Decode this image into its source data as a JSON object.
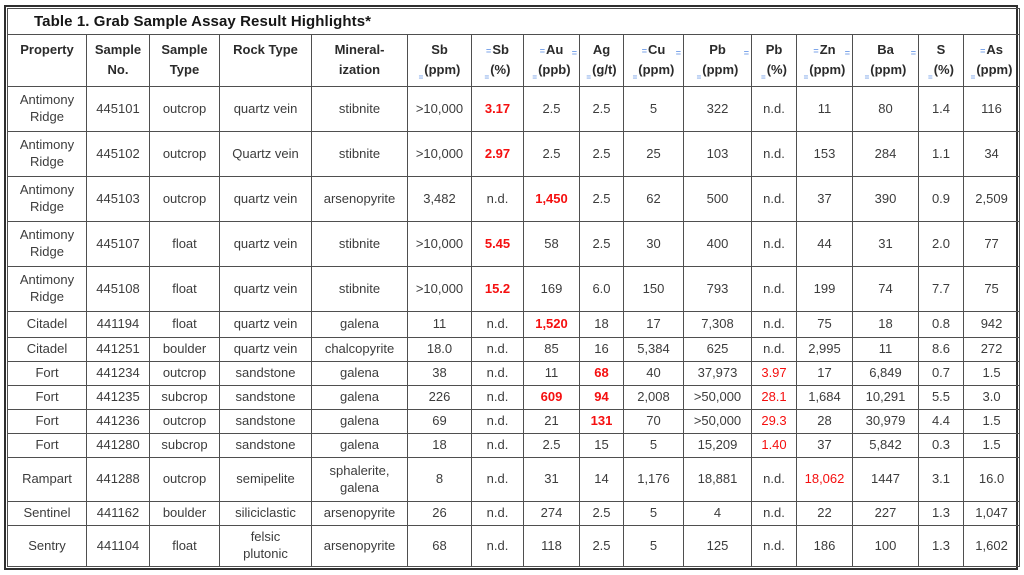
{
  "title": "Table 1. Grab Sample Assay Result Highlights*",
  "accent_colors": {
    "highlight_red": "#f50f0f",
    "proofing_mark_blue": "#7ea6ea",
    "grid_line": "#4f4f4f",
    "text": "#3c3c3c"
  },
  "columns": [
    {
      "key": "property",
      "line1": "Property",
      "line2": "",
      "marks": {
        "pre": false,
        "post": false,
        "sub": false
      }
    },
    {
      "key": "sample-no",
      "line1": "Sample",
      "line2": "No.",
      "marks": {
        "pre": false,
        "post": false,
        "sub": false
      }
    },
    {
      "key": "sample-type",
      "line1": "Sample",
      "line2": "Type",
      "marks": {
        "pre": false,
        "post": false,
        "sub": false
      }
    },
    {
      "key": "rock-type",
      "line1": "Rock Type",
      "line2": "",
      "marks": {
        "pre": false,
        "post": false,
        "sub": false
      }
    },
    {
      "key": "mineralization",
      "line1": "Mineral-",
      "line2": "ization",
      "marks": {
        "pre": false,
        "post": false,
        "sub": false
      }
    },
    {
      "key": "sb-ppm",
      "line1": "Sb",
      "line2": "(ppm)",
      "marks": {
        "pre": false,
        "post": false,
        "sub": true
      }
    },
    {
      "key": "sb-pct",
      "line1": "Sb",
      "line2": "(%)",
      "marks": {
        "pre": true,
        "post": false,
        "sub": true
      }
    },
    {
      "key": "au-ppb",
      "line1": "Au",
      "line2": "(ppb)",
      "marks": {
        "pre": true,
        "post": true,
        "sub": true
      }
    },
    {
      "key": "ag-gt",
      "line1": "Ag",
      "line2": "(g/t)",
      "marks": {
        "pre": false,
        "post": false,
        "sub": true
      }
    },
    {
      "key": "cu-ppm",
      "line1": "Cu",
      "line2": "(ppm)",
      "marks": {
        "pre": true,
        "post": true,
        "sub": true
      }
    },
    {
      "key": "pb-ppm",
      "line1": "Pb",
      "line2": "(ppm)",
      "marks": {
        "pre": false,
        "post": true,
        "sub": true
      }
    },
    {
      "key": "pb-pct",
      "line1": "Pb",
      "line2": "(%)",
      "marks": {
        "pre": false,
        "post": false,
        "sub": true
      }
    },
    {
      "key": "zn-ppm",
      "line1": "Zn",
      "line2": "(ppm)",
      "marks": {
        "pre": true,
        "post": true,
        "sub": true
      }
    },
    {
      "key": "ba-ppm",
      "line1": "Ba",
      "line2": "(ppm)",
      "marks": {
        "pre": false,
        "post": true,
        "sub": true
      }
    },
    {
      "key": "s-pct",
      "line1": "S",
      "line2": "(%)",
      "marks": {
        "pre": false,
        "post": false,
        "sub": true
      }
    },
    {
      "key": "as-ppm",
      "line1": "As",
      "line2": "(ppm)",
      "marks": {
        "pre": true,
        "post": false,
        "sub": true
      }
    }
  ],
  "rows": [
    {
      "cells": [
        {
          "text": "Antimony\nRidge"
        },
        {
          "text": "445101"
        },
        {
          "text": "outcrop"
        },
        {
          "text": "quartz vein"
        },
        {
          "text": "stibnite"
        },
        {
          "text": ">10,000"
        },
        {
          "text": "3.17",
          "style": "red-bold"
        },
        {
          "text": "2.5"
        },
        {
          "text": "2.5"
        },
        {
          "text": "5"
        },
        {
          "text": "322"
        },
        {
          "text": "n.d."
        },
        {
          "text": "11"
        },
        {
          "text": "80"
        },
        {
          "text": "1.4"
        },
        {
          "text": "116"
        }
      ]
    },
    {
      "cells": [
        {
          "text": "Antimony\nRidge"
        },
        {
          "text": "445102"
        },
        {
          "text": "outcrop"
        },
        {
          "text": "Quartz vein"
        },
        {
          "text": "stibnite"
        },
        {
          "text": ">10,000"
        },
        {
          "text": "2.97",
          "style": "red-bold"
        },
        {
          "text": "2.5"
        },
        {
          "text": "2.5"
        },
        {
          "text": "25"
        },
        {
          "text": "103"
        },
        {
          "text": "n.d."
        },
        {
          "text": "153"
        },
        {
          "text": "284"
        },
        {
          "text": "1.1"
        },
        {
          "text": "34"
        }
      ]
    },
    {
      "cells": [
        {
          "text": "Antimony\nRidge"
        },
        {
          "text": "445103"
        },
        {
          "text": "outcrop"
        },
        {
          "text": "quartz vein"
        },
        {
          "text": "arsenopyrite"
        },
        {
          "text": "3,482"
        },
        {
          "text": "n.d."
        },
        {
          "text": "1,450",
          "style": "red-bold"
        },
        {
          "text": "2.5"
        },
        {
          "text": "62"
        },
        {
          "text": "500"
        },
        {
          "text": "n.d."
        },
        {
          "text": "37"
        },
        {
          "text": "390"
        },
        {
          "text": "0.9"
        },
        {
          "text": "2,509"
        }
      ]
    },
    {
      "cells": [
        {
          "text": "Antimony\nRidge"
        },
        {
          "text": "445107"
        },
        {
          "text": "float"
        },
        {
          "text": "quartz vein"
        },
        {
          "text": "stibnite"
        },
        {
          "text": ">10,000"
        },
        {
          "text": "5.45",
          "style": "red-bold"
        },
        {
          "text": "58"
        },
        {
          "text": "2.5"
        },
        {
          "text": "30"
        },
        {
          "text": "400"
        },
        {
          "text": "n.d."
        },
        {
          "text": "44"
        },
        {
          "text": "31"
        },
        {
          "text": "2.0"
        },
        {
          "text": "77"
        }
      ]
    },
    {
      "cells": [
        {
          "text": "Antimony\nRidge"
        },
        {
          "text": "445108"
        },
        {
          "text": "float"
        },
        {
          "text": "quartz vein"
        },
        {
          "text": "stibnite"
        },
        {
          "text": ">10,000"
        },
        {
          "text": "15.2",
          "style": "red-bold"
        },
        {
          "text": "169"
        },
        {
          "text": "6.0"
        },
        {
          "text": "150"
        },
        {
          "text": "793"
        },
        {
          "text": "n.d."
        },
        {
          "text": "199"
        },
        {
          "text": "74"
        },
        {
          "text": "7.7"
        },
        {
          "text": "75"
        }
      ]
    },
    {
      "cells": [
        {
          "text": "Citadel"
        },
        {
          "text": "441194"
        },
        {
          "text": "float"
        },
        {
          "text": "quartz vein"
        },
        {
          "text": "galena"
        },
        {
          "text": "11"
        },
        {
          "text": "n.d."
        },
        {
          "text": "1,520",
          "style": "red-bold"
        },
        {
          "text": "18"
        },
        {
          "text": "17"
        },
        {
          "text": "7,308"
        },
        {
          "text": "n.d."
        },
        {
          "text": "75"
        },
        {
          "text": "18"
        },
        {
          "text": "0.8"
        },
        {
          "text": "942"
        }
      ]
    },
    {
      "cells": [
        {
          "text": "Citadel"
        },
        {
          "text": "441251"
        },
        {
          "text": "boulder"
        },
        {
          "text": "quartz vein"
        },
        {
          "text": "chalcopyrite"
        },
        {
          "text": "18.0"
        },
        {
          "text": "n.d."
        },
        {
          "text": "85"
        },
        {
          "text": "16"
        },
        {
          "text": "5,384"
        },
        {
          "text": "625"
        },
        {
          "text": "n.d."
        },
        {
          "text": "2,995"
        },
        {
          "text": "11"
        },
        {
          "text": "8.6"
        },
        {
          "text": "272"
        }
      ]
    },
    {
      "cells": [
        {
          "text": "Fort"
        },
        {
          "text": "441234"
        },
        {
          "text": "outcrop"
        },
        {
          "text": "sandstone"
        },
        {
          "text": "galena"
        },
        {
          "text": "38"
        },
        {
          "text": "n.d."
        },
        {
          "text": "11"
        },
        {
          "text": "68",
          "style": "red-bold"
        },
        {
          "text": "40"
        },
        {
          "text": "37,973"
        },
        {
          "text": "3.97",
          "style": "red"
        },
        {
          "text": "17"
        },
        {
          "text": "6,849"
        },
        {
          "text": "0.7"
        },
        {
          "text": "1.5"
        }
      ]
    },
    {
      "cells": [
        {
          "text": "Fort"
        },
        {
          "text": "441235"
        },
        {
          "text": "subcrop"
        },
        {
          "text": "sandstone"
        },
        {
          "text": "galena"
        },
        {
          "text": "226"
        },
        {
          "text": "n.d."
        },
        {
          "text": "609",
          "style": "red-bold"
        },
        {
          "text": "94",
          "style": "red-bold"
        },
        {
          "text": "2,008"
        },
        {
          "text": ">50,000"
        },
        {
          "text": "28.1",
          "style": "red"
        },
        {
          "text": "1,684"
        },
        {
          "text": "10,291"
        },
        {
          "text": "5.5"
        },
        {
          "text": "3.0"
        }
      ]
    },
    {
      "cells": [
        {
          "text": "Fort"
        },
        {
          "text": "441236"
        },
        {
          "text": "outcrop"
        },
        {
          "text": "sandstone"
        },
        {
          "text": "galena"
        },
        {
          "text": "69"
        },
        {
          "text": "n.d."
        },
        {
          "text": "21"
        },
        {
          "text": "131",
          "style": "red-bold"
        },
        {
          "text": "70"
        },
        {
          "text": ">50,000"
        },
        {
          "text": "29.3",
          "style": "red"
        },
        {
          "text": "28"
        },
        {
          "text": "30,979"
        },
        {
          "text": "4.4"
        },
        {
          "text": "1.5"
        }
      ]
    },
    {
      "cells": [
        {
          "text": "Fort"
        },
        {
          "text": "441280"
        },
        {
          "text": "subcrop"
        },
        {
          "text": "sandstone"
        },
        {
          "text": "galena"
        },
        {
          "text": "18"
        },
        {
          "text": "n.d."
        },
        {
          "text": "2.5"
        },
        {
          "text": "15"
        },
        {
          "text": "5"
        },
        {
          "text": "15,209"
        },
        {
          "text": "1.40",
          "style": "red"
        },
        {
          "text": "37"
        },
        {
          "text": "5,842"
        },
        {
          "text": "0.3"
        },
        {
          "text": "1.5"
        }
      ]
    },
    {
      "cells": [
        {
          "text": "Rampart"
        },
        {
          "text": "441288"
        },
        {
          "text": "outcrop"
        },
        {
          "text": "semipelite"
        },
        {
          "text": "sphalerite,\ngalena"
        },
        {
          "text": "8"
        },
        {
          "text": "n.d."
        },
        {
          "text": "31"
        },
        {
          "text": "14"
        },
        {
          "text": "1,176"
        },
        {
          "text": "18,881"
        },
        {
          "text": "n.d."
        },
        {
          "text": "18,062",
          "style": "red"
        },
        {
          "text": "1447"
        },
        {
          "text": "3.1"
        },
        {
          "text": "16.0"
        }
      ]
    },
    {
      "cells": [
        {
          "text": "Sentinel"
        },
        {
          "text": "441162"
        },
        {
          "text": "boulder"
        },
        {
          "text": "siliciclastic"
        },
        {
          "text": "arsenopyrite"
        },
        {
          "text": "26"
        },
        {
          "text": "n.d."
        },
        {
          "text": "274"
        },
        {
          "text": "2.5"
        },
        {
          "text": "5"
        },
        {
          "text": "4"
        },
        {
          "text": "n.d."
        },
        {
          "text": "22"
        },
        {
          "text": "227"
        },
        {
          "text": "1.3"
        },
        {
          "text": "1,047"
        }
      ]
    },
    {
      "cells": [
        {
          "text": "Sentry"
        },
        {
          "text": "441104"
        },
        {
          "text": "float"
        },
        {
          "text": "felsic\nplutonic"
        },
        {
          "text": "arsenopyrite"
        },
        {
          "text": "68"
        },
        {
          "text": "n.d."
        },
        {
          "text": "118"
        },
        {
          "text": "2.5"
        },
        {
          "text": "5"
        },
        {
          "text": "125"
        },
        {
          "text": "n.d."
        },
        {
          "text": "186"
        },
        {
          "text": "100"
        },
        {
          "text": "1.3"
        },
        {
          "text": "1,602"
        }
      ]
    }
  ]
}
